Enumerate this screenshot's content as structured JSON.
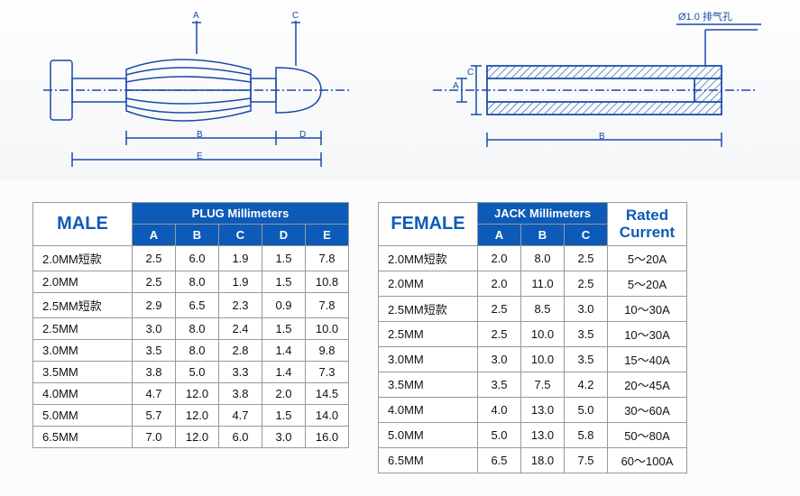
{
  "diagram": {
    "male": {
      "dim_labels": [
        "A",
        "B",
        "C",
        "D",
        "E"
      ],
      "lineColor": "#1a4aa8",
      "hatchColor": "#1a4aa8"
    },
    "female": {
      "dim_labels": [
        "A",
        "B",
        "C"
      ],
      "callout": "Ø1.0 排气孔",
      "lineColor": "#1a4aa8",
      "hatchColor": "#1a4aa8"
    },
    "background": "#fbfcfd"
  },
  "tables": {
    "male": {
      "title": "MALE",
      "group_header": "PLUG Millimeters",
      "columns": [
        "A",
        "B",
        "C",
        "D",
        "E"
      ],
      "rows": [
        {
          "label": "2.0MM短款",
          "v": [
            "2.5",
            "6.0",
            "1.9",
            "1.5",
            "7.8"
          ]
        },
        {
          "label": "2.0MM",
          "v": [
            "2.5",
            "8.0",
            "1.9",
            "1.5",
            "10.8"
          ]
        },
        {
          "label": "2.5MM短款",
          "v": [
            "2.9",
            "6.5",
            "2.3",
            "0.9",
            "7.8"
          ]
        },
        {
          "label": "2.5MM",
          "v": [
            "3.0",
            "8.0",
            "2.4",
            "1.5",
            "10.0"
          ]
        },
        {
          "label": "3.0MM",
          "v": [
            "3.5",
            "8.0",
            "2.8",
            "1.4",
            "9.8"
          ]
        },
        {
          "label": "3.5MM",
          "v": [
            "3.8",
            "5.0",
            "3.3",
            "1.4",
            "7.3"
          ]
        },
        {
          "label": "4.0MM",
          "v": [
            "4.7",
            "12.0",
            "3.8",
            "2.0",
            "14.5"
          ]
        },
        {
          "label": "5.0MM",
          "v": [
            "5.7",
            "12.0",
            "4.7",
            "1.5",
            "14.0"
          ]
        },
        {
          "label": "6.5MM",
          "v": [
            "7.0",
            "12.0",
            "6.0",
            "3.0",
            "16.0"
          ]
        }
      ]
    },
    "female": {
      "title": "FEMALE",
      "group_header": "JACK  Millimeters",
      "rated_title": "Rated Current",
      "columns": [
        "A",
        "B",
        "C"
      ],
      "rows": [
        {
          "label": "2.0MM短款",
          "v": [
            "2.0",
            "8.0",
            "2.5"
          ],
          "rated": "5～20A"
        },
        {
          "label": "2.0MM",
          "v": [
            "2.0",
            "11.0",
            "2.5"
          ],
          "rated": "5～20A"
        },
        {
          "label": "2.5MM短款",
          "v": [
            "2.5",
            "8.5",
            "3.0"
          ],
          "rated": "10～30A"
        },
        {
          "label": "2.5MM",
          "v": [
            "2.5",
            "10.0",
            "3.5"
          ],
          "rated": "10～30A"
        },
        {
          "label": "3.0MM",
          "v": [
            "3.0",
            "10.0",
            "3.5"
          ],
          "rated": "15～40A"
        },
        {
          "label": "3.5MM",
          "v": [
            "3.5",
            "7.5",
            "4.2"
          ],
          "rated": "20～45A"
        },
        {
          "label": "4.0MM",
          "v": [
            "4.0",
            "13.0",
            "5.0"
          ],
          "rated": "30～60A"
        },
        {
          "label": "5.0MM",
          "v": [
            "5.0",
            "13.0",
            "5.8"
          ],
          "rated": "50～80A"
        },
        {
          "label": "6.5MM",
          "v": [
            "6.5",
            "18.0",
            "7.5"
          ],
          "rated": "60～100A"
        }
      ]
    },
    "header_bg": "#0d5bb8",
    "header_fg": "#ffffff",
    "title_fg": "#0d5bb8",
    "border": "#999999",
    "cell_bg": "#ffffff"
  }
}
